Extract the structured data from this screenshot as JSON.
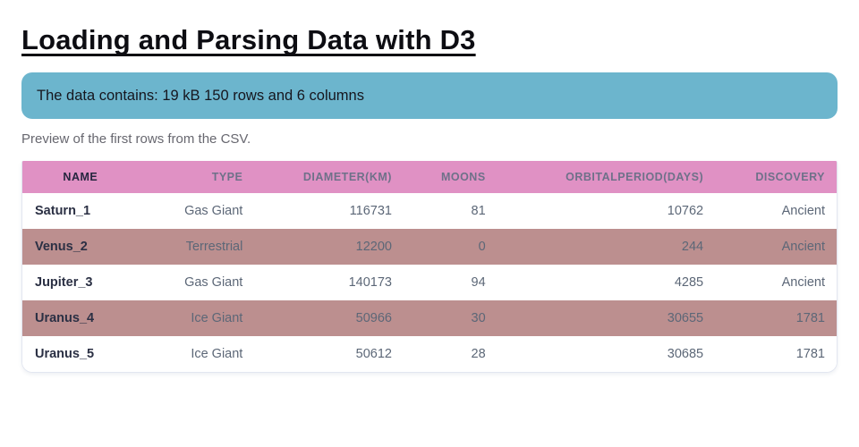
{
  "page": {
    "title": "Loading and Parsing Data with D3",
    "banner_text": "The data contains: 19 kB 150 rows and 6 columns",
    "caption": "Preview of the first rows from the CSV."
  },
  "table": {
    "columns": [
      {
        "id": "name",
        "label": "NAME"
      },
      {
        "id": "type",
        "label": "TYPE"
      },
      {
        "id": "diameter_km",
        "label": "DIAMETER(KM)"
      },
      {
        "id": "moons",
        "label": "MOONS"
      },
      {
        "id": "orbital_period_days",
        "label": "ORBITALPERIOD(DAYS)"
      },
      {
        "id": "discovery",
        "label": "DISCOVERY"
      }
    ],
    "rows": [
      {
        "name": "Saturn_1",
        "type": "Gas Giant",
        "diameter_km": "116731",
        "moons": "81",
        "orbital_period_days": "10762",
        "discovery": "Ancient",
        "highlighted": false
      },
      {
        "name": "Venus_2",
        "type": "Terrestrial",
        "diameter_km": "12200",
        "moons": "0",
        "orbital_period_days": "244",
        "discovery": "Ancient",
        "highlighted": true
      },
      {
        "name": "Jupiter_3",
        "type": "Gas Giant",
        "diameter_km": "140173",
        "moons": "94",
        "orbital_period_days": "4285",
        "discovery": "Ancient",
        "highlighted": false
      },
      {
        "name": "Uranus_4",
        "type": "Ice Giant",
        "diameter_km": "50966",
        "moons": "30",
        "orbital_period_days": "30655",
        "discovery": "1781",
        "highlighted": true
      },
      {
        "name": "Uranus_5",
        "type": "Ice Giant",
        "diameter_km": "50612",
        "moons": "28",
        "orbital_period_days": "30685",
        "discovery": "1781",
        "highlighted": false
      }
    ]
  },
  "colors": {
    "banner_bg": "#6cb5cd",
    "header_bg": "#e091c4",
    "highlight_row_bg": "#bc8f8f"
  }
}
